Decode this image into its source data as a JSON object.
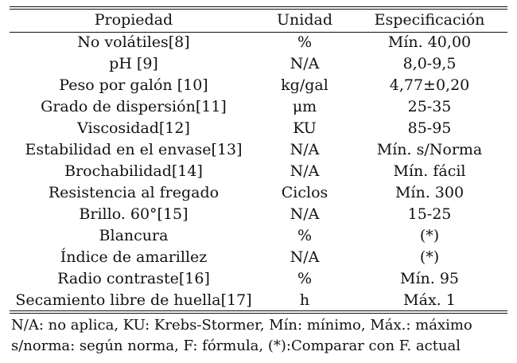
{
  "table": {
    "headers": [
      "Propiedad",
      "Unidad",
      "Especificación"
    ],
    "rows": [
      [
        "No volátiles[8]",
        "%",
        "Mín. 40,00"
      ],
      [
        "pH [9]",
        "N/A",
        "8,0-9,5"
      ],
      [
        "Peso por galón [10]",
        "kg/gal",
        "4,77±0,20"
      ],
      [
        "Grado de dispersión[11]",
        "μm",
        "25-35"
      ],
      [
        "Viscosidad[12]",
        "KU",
        "85-95"
      ],
      [
        "Estabilidad en el envase[13]",
        "N/A",
        "Mín. s/Norma"
      ],
      [
        "Brochabilidad[14]",
        "N/A",
        "Mín. fácil"
      ],
      [
        "Resistencia al fregado",
        "Ciclos",
        "Mín. 300"
      ],
      [
        "Brillo. 60°[15]",
        "N/A",
        "15-25"
      ],
      [
        "Blancura",
        "%",
        "(*)"
      ],
      [
        "Índice de amarillez",
        "N/A",
        "(*)"
      ],
      [
        "Radio contraste[16]",
        "%",
        "Mín. 95"
      ],
      [
        "Secamiento libre de huella[17]",
        "h",
        "Máx. 1"
      ]
    ]
  },
  "notes": {
    "line1": "N/A: no aplica, KU: Krebs-Stormer, Mín: mínimo, Máx.: máximo",
    "line2": "s/norma: según norma, F: fórmula, (*):Comparar con F. actual"
  }
}
